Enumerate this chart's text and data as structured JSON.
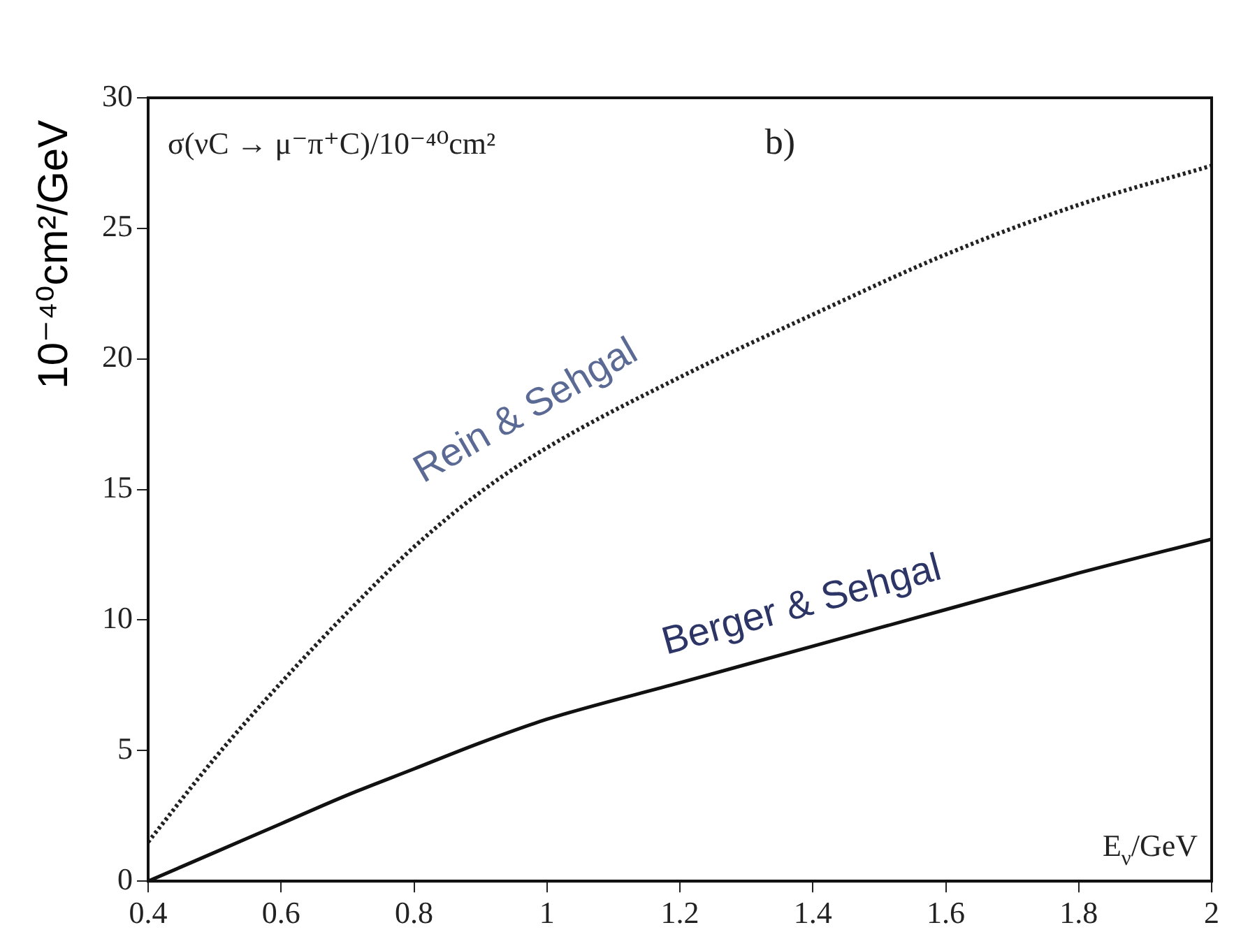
{
  "chart_data": {
    "type": "line",
    "xlabel": "E$_{ν}$/GeV",
    "ylabel": "10⁻⁴⁰cm²/GeV",
    "annotations": [
      "σ(νC → μ⁻π⁺C)/10⁻⁴⁰cm²",
      "b)"
    ],
    "x": [
      0.4,
      0.5,
      0.6,
      0.7,
      0.8,
      0.9,
      1.0,
      1.2,
      1.4,
      1.6,
      1.8,
      2.0
    ],
    "series": [
      {
        "name": "Rein & Sehgal",
        "color": "#222222",
        "line_style": "dotted",
        "values": [
          1.5,
          4.7,
          7.6,
          10.3,
          12.8,
          14.9,
          16.6,
          19.3,
          21.7,
          24.0,
          25.9,
          27.4
        ]
      },
      {
        "name": "Berger & Sehgal",
        "color": "#111111",
        "line_style": "solid",
        "values": [
          0,
          1.1,
          2.2,
          3.3,
          4.3,
          5.3,
          6.2,
          7.6,
          9.0,
          10.4,
          11.8,
          13.1
        ]
      }
    ],
    "xlim": [
      0.4,
      2
    ],
    "xticks": [
      0.4,
      0.6,
      0.8,
      1,
      1.2,
      1.4,
      1.6,
      1.8,
      2
    ],
    "ylim": [
      0,
      30
    ],
    "yticks": [
      0,
      5,
      10,
      15,
      20,
      25,
      30
    ],
    "grid": false,
    "legend": false,
    "marker": "none"
  }
}
